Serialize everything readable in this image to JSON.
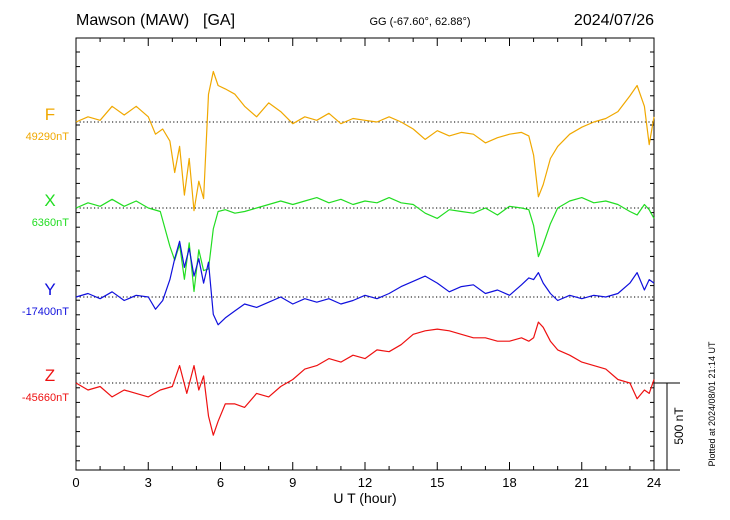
{
  "header": {
    "station": "Mawson (MAW)",
    "code": "[GA]",
    "coords": "GG (-67.60°,  62.88°)",
    "date": "2024/07/26"
  },
  "footer": {
    "xlabel": "U T (hour)",
    "plotted": "Plotted at 2024/08/01 21:14 UT",
    "scale_label": "500 nT"
  },
  "chart_data": {
    "type": "line",
    "title": "Mawson (MAW)  [GA]",
    "xlabel": "U T (hour)",
    "ylabel": "",
    "xlim": [
      0,
      24
    ],
    "x_ticks": [
      0,
      3,
      6,
      9,
      12,
      15,
      18,
      21,
      24
    ],
    "grid": false,
    "scale_bar_nT": 500,
    "series": [
      {
        "name": "F",
        "baseline_label": "49290nT",
        "baseline": 49290,
        "color": "#f0a800",
        "x": [
          0,
          0.5,
          1,
          1.5,
          2,
          2.5,
          3,
          3.3,
          3.6,
          3.9,
          4.1,
          4.3,
          4.5,
          4.7,
          4.9,
          5.1,
          5.3,
          5.5,
          5.7,
          5.9,
          6.2,
          6.6,
          7,
          7.5,
          8,
          8.5,
          9,
          9.5,
          10,
          10.5,
          11,
          11.5,
          12,
          12.5,
          13,
          13.5,
          14,
          14.5,
          15,
          15.5,
          16,
          16.5,
          17,
          17.5,
          18,
          18.5,
          18.8,
          19,
          19.2,
          19.4,
          19.7,
          20,
          20.5,
          21,
          21.5,
          22,
          22.5,
          23,
          23.3,
          23.6,
          23.8,
          24
        ],
        "values": [
          49290,
          49320,
          49300,
          49380,
          49330,
          49380,
          49320,
          49220,
          49250,
          49180,
          49000,
          49150,
          48870,
          49080,
          48780,
          48950,
          48850,
          49450,
          49580,
          49500,
          49480,
          49450,
          49380,
          49320,
          49400,
          49350,
          49280,
          49320,
          49300,
          49340,
          49280,
          49310,
          49300,
          49290,
          49320,
          49290,
          49250,
          49190,
          49240,
          49210,
          49230,
          49220,
          49170,
          49200,
          49220,
          49230,
          49210,
          49100,
          48860,
          48930,
          49080,
          49150,
          49220,
          49260,
          49290,
          49310,
          49350,
          49440,
          49500,
          49380,
          49160,
          49320
        ]
      },
      {
        "name": "X",
        "baseline_label": "6360nT",
        "baseline": 6360,
        "color": "#22dd22",
        "x": [
          0,
          0.5,
          1,
          1.5,
          2,
          2.5,
          3,
          3.5,
          3.9,
          4.1,
          4.3,
          4.5,
          4.7,
          4.9,
          5.1,
          5.3,
          5.5,
          5.7,
          5.9,
          6.2,
          6.6,
          7,
          7.5,
          8,
          8.5,
          9,
          9.5,
          10,
          10.5,
          11,
          11.5,
          12,
          12.5,
          13,
          13.5,
          14,
          14.5,
          15,
          15.5,
          16,
          16.5,
          17,
          17.5,
          18,
          18.5,
          18.8,
          19,
          19.2,
          19.4,
          19.7,
          20,
          20.5,
          21,
          21.5,
          22,
          22.5,
          23,
          23.3,
          23.6,
          23.8,
          24
        ],
        "values": [
          6360,
          6390,
          6370,
          6410,
          6370,
          6400,
          6360,
          6340,
          6140,
          6060,
          6150,
          5950,
          6160,
          5880,
          6120,
          6000,
          6010,
          6240,
          6340,
          6350,
          6330,
          6340,
          6360,
          6380,
          6400,
          6380,
          6400,
          6420,
          6390,
          6410,
          6380,
          6400,
          6390,
          6420,
          6390,
          6380,
          6330,
          6300,
          6350,
          6340,
          6330,
          6360,
          6320,
          6370,
          6360,
          6350,
          6260,
          6080,
          6150,
          6270,
          6360,
          6400,
          6420,
          6390,
          6400,
          6380,
          6340,
          6320,
          6380,
          6350,
          6300
        ]
      },
      {
        "name": "Y",
        "baseline_label": "-17400nT",
        "baseline": -17400,
        "color": "#1010dd",
        "x": [
          0,
          0.5,
          1,
          1.5,
          2,
          2.5,
          3,
          3.3,
          3.6,
          3.9,
          4.1,
          4.3,
          4.5,
          4.7,
          4.9,
          5.1,
          5.3,
          5.5,
          5.7,
          5.9,
          6.2,
          6.6,
          7,
          7.5,
          8,
          8.5,
          9,
          9.5,
          10,
          10.5,
          11,
          11.5,
          12,
          12.5,
          13,
          13.5,
          14,
          14.5,
          15,
          15.5,
          16,
          16.5,
          17,
          17.5,
          18,
          18.5,
          18.8,
          19,
          19.2,
          19.4,
          19.7,
          20,
          20.5,
          21,
          21.5,
          22,
          22.5,
          23,
          23.3,
          23.6,
          23.8,
          24
        ],
        "values": [
          -17400,
          -17380,
          -17410,
          -17370,
          -17420,
          -17390,
          -17400,
          -17470,
          -17420,
          -17300,
          -17180,
          -17080,
          -17230,
          -17120,
          -17280,
          -17180,
          -17320,
          -17200,
          -17500,
          -17560,
          -17520,
          -17480,
          -17440,
          -17460,
          -17430,
          -17400,
          -17440,
          -17410,
          -17430,
          -17410,
          -17440,
          -17420,
          -17390,
          -17410,
          -17380,
          -17340,
          -17310,
          -17280,
          -17320,
          -17370,
          -17340,
          -17330,
          -17380,
          -17360,
          -17390,
          -17330,
          -17290,
          -17300,
          -17260,
          -17320,
          -17380,
          -17420,
          -17390,
          -17410,
          -17390,
          -17400,
          -17380,
          -17320,
          -17260,
          -17360,
          -17300,
          -17320
        ]
      },
      {
        "name": "Z",
        "baseline_label": "-45660nT",
        "baseline": -45660,
        "color": "#ee1111",
        "x": [
          0,
          0.5,
          1,
          1.5,
          2,
          2.5,
          3,
          3.5,
          4,
          4.3,
          4.6,
          4.9,
          5.1,
          5.3,
          5.5,
          5.7,
          5.9,
          6.2,
          6.6,
          7,
          7.5,
          8,
          8.5,
          9,
          9.5,
          10,
          10.5,
          11,
          11.5,
          12,
          12.5,
          13,
          13.5,
          14,
          14.5,
          15,
          15.5,
          16,
          16.5,
          17,
          17.5,
          18,
          18.5,
          18.8,
          19,
          19.2,
          19.4,
          19.7,
          20,
          20.5,
          21,
          21.5,
          22,
          22.5,
          23,
          23.3,
          23.6,
          23.8,
          24
        ],
        "values": [
          -45660,
          -45700,
          -45680,
          -45740,
          -45700,
          -45720,
          -45740,
          -45700,
          -45680,
          -45560,
          -45720,
          -45560,
          -45700,
          -45620,
          -45850,
          -45960,
          -45880,
          -45780,
          -45780,
          -45800,
          -45720,
          -45740,
          -45680,
          -45640,
          -45580,
          -45560,
          -45520,
          -45540,
          -45500,
          -45520,
          -45470,
          -45480,
          -45440,
          -45380,
          -45360,
          -45350,
          -45360,
          -45380,
          -45400,
          -45400,
          -45420,
          -45420,
          -45400,
          -45420,
          -45400,
          -45310,
          -45340,
          -45420,
          -45470,
          -45500,
          -45540,
          -45560,
          -45580,
          -45640,
          -45660,
          -45750,
          -45700,
          -45720,
          -45640
        ]
      }
    ]
  }
}
